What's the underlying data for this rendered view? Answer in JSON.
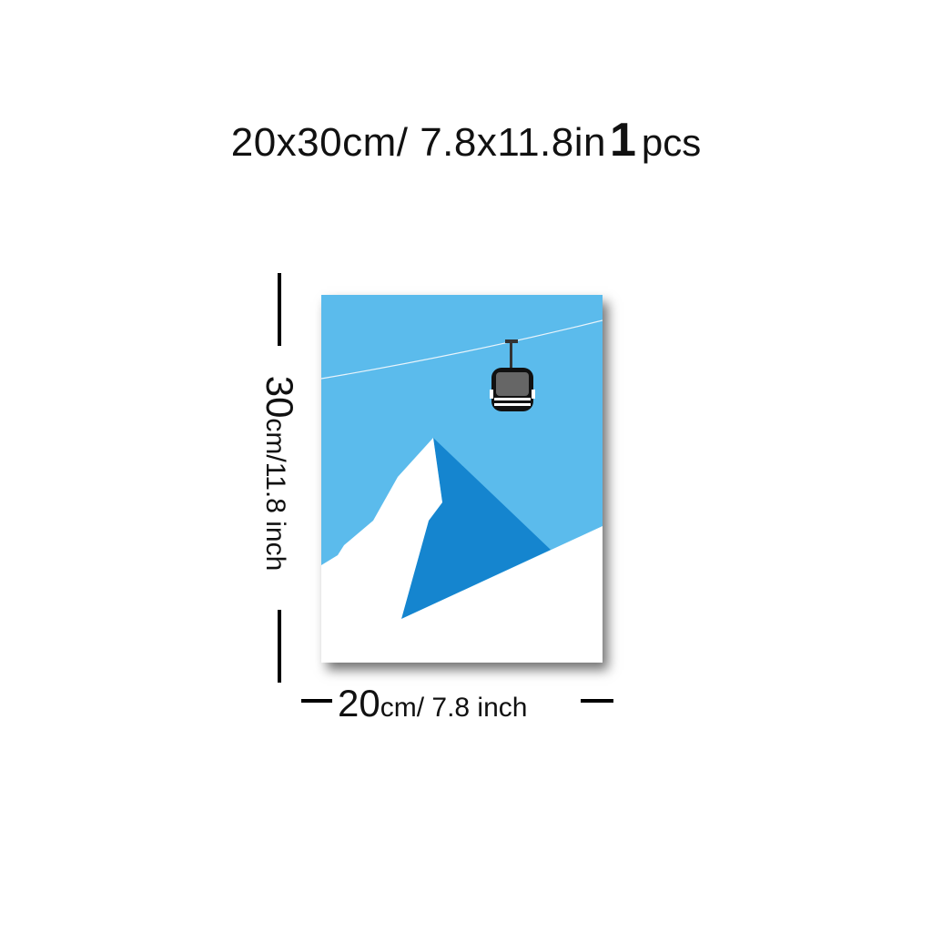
{
  "header": {
    "size_text": "20x30cm/ 7.8x11.8in",
    "quantity": "1",
    "quantity_unit": "pcs"
  },
  "dimensions": {
    "height_value": "30",
    "height_unit_text": "cm/11.8 inch",
    "width_value": "20",
    "width_unit_text": "cm/ 7.8 inch"
  },
  "poster": {
    "subject": "mountain peak with cable car gondola",
    "icons": [
      "mountain-illustration",
      "gondola-icon"
    ],
    "colors": {
      "sky": "#5bbbec",
      "mountain_shadow": "#1585cf",
      "snow": "#ffffff",
      "gondola_body": "#555555",
      "gondola_trim": "#111111"
    }
  }
}
